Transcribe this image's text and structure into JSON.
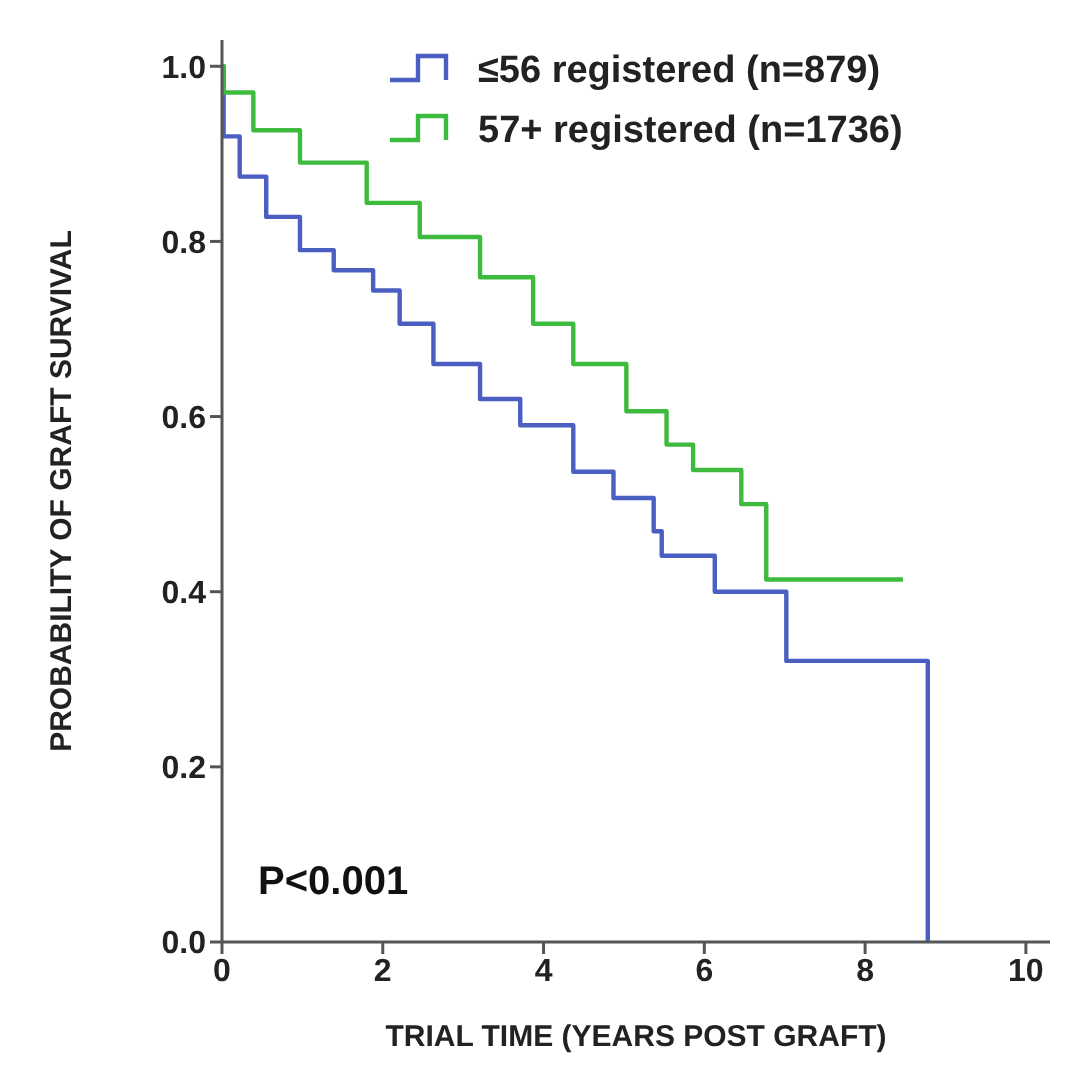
{
  "chart_data": {
    "type": "step",
    "xlabel": "TRIAL TIME (YEARS POST GRAFT)",
    "ylabel": "PROBABILITY OF GRAFT SURVIVAL",
    "xlim": [
      0,
      10.3
    ],
    "xticks": [
      0,
      2,
      4,
      6,
      8,
      10
    ],
    "ylim": [
      0,
      1.03
    ],
    "yticks": [
      {
        "value": 0,
        "label": "0.0"
      },
      0.2,
      0.4,
      0.6,
      0.8,
      {
        "value": 1,
        "label": "1.0"
      }
    ],
    "grid": false,
    "legend": "top right",
    "marker": "none",
    "line_style": "solid",
    "annotations": [
      "P<0.001"
    ],
    "series": [
      {
        "name": "≤56 registered (n=879)",
        "color": "#4a5fc1",
        "x": [
          0,
          0.02,
          0.22,
          0.55,
          0.97,
          1.39,
          1.88,
          2.21,
          2.63,
          3.21,
          3.71,
          4.37,
          4.87,
          5.37,
          5.47,
          6.13,
          7.02,
          8.78,
          8.78
        ],
        "values": [
          1.0,
          0.92,
          0.874,
          0.828,
          0.79,
          0.767,
          0.744,
          0.706,
          0.66,
          0.62,
          0.59,
          0.537,
          0.507,
          0.469,
          0.441,
          0.4,
          0.321,
          0.0,
          0.0
        ]
      },
      {
        "name": "57+ registered (n=1736)",
        "color": "#3dbb3d",
        "x": [
          0,
          0.02,
          0.39,
          0.97,
          1.8,
          2.46,
          3.21,
          3.87,
          4.37,
          5.03,
          5.53,
          5.86,
          6.46,
          6.77,
          8.47
        ],
        "values": [
          1.0,
          0.97,
          0.927,
          0.89,
          0.844,
          0.805,
          0.759,
          0.706,
          0.66,
          0.606,
          0.568,
          0.539,
          0.5,
          0.414,
          0.414
        ]
      }
    ]
  }
}
